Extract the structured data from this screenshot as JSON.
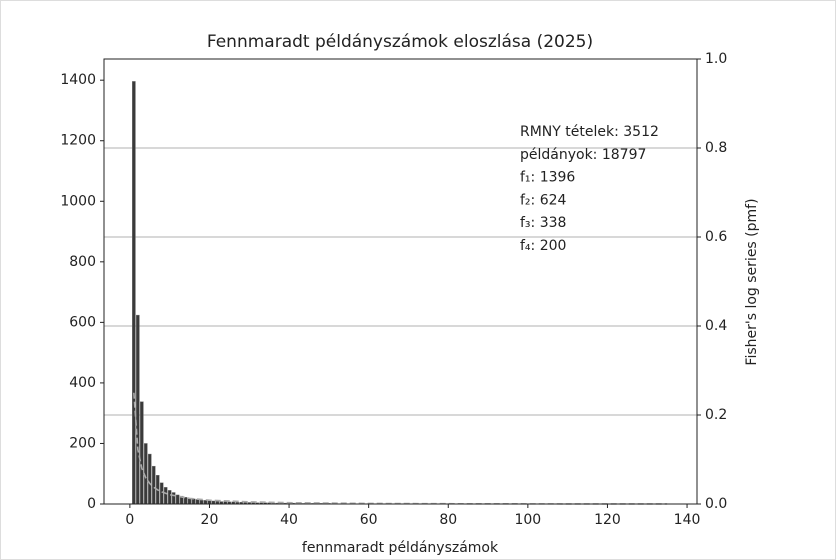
{
  "chart_data": {
    "type": "bar",
    "title": "Fennmaradt példányszámok eloszlása (2025)",
    "xlabel": "fennmaradt példányszámok",
    "y2label": "Fisher's log series (pmf)",
    "x": [
      1,
      2,
      3,
      4,
      5,
      6,
      7,
      8,
      9,
      10,
      11,
      12,
      13,
      14,
      15,
      16,
      17,
      18,
      19,
      20,
      21,
      22,
      23,
      24,
      25,
      26,
      27,
      28,
      29,
      30,
      31,
      32,
      33,
      34,
      35,
      36,
      37,
      38,
      39,
      40,
      41,
      42,
      43,
      44,
      45,
      46,
      47,
      48,
      49,
      50,
      51,
      52,
      53,
      54,
      55,
      56,
      57,
      58,
      59,
      60
    ],
    "values": [
      1396,
      624,
      338,
      200,
      165,
      125,
      95,
      70,
      55,
      45,
      38,
      30,
      26,
      22,
      19,
      17,
      15,
      13,
      12,
      11,
      10,
      9,
      8,
      8,
      7,
      7,
      6,
      6,
      5,
      5,
      5,
      4,
      4,
      4,
      4,
      3,
      3,
      3,
      3,
      3,
      3,
      2,
      2,
      2,
      2,
      2,
      2,
      2,
      2,
      2,
      1,
      1,
      1,
      1,
      1,
      1,
      1,
      1,
      1,
      1
    ],
    "color": "#3a3a3a",
    "line": {
      "x": [
        1,
        2,
        3,
        4,
        5,
        6,
        7,
        8,
        10,
        15,
        20,
        30,
        40,
        60,
        80,
        100,
        135
      ],
      "values": [
        0.25,
        0.1227,
        0.0802,
        0.0589,
        0.0461,
        0.0376,
        0.0316,
        0.0271,
        0.0209,
        0.0126,
        0.0085,
        0.0048,
        0.0029,
        0.0013,
        0.0006,
        0.0003,
        0.0001
      ],
      "axis": "y2",
      "color": "#aaaaaa",
      "dashed": true
    },
    "annotations": [
      "RMNY tételek: 3512",
      "példányok: 18797",
      "f₁: 1396",
      "f₂: 624",
      "f₃: 338",
      "f₄: 200"
    ],
    "xlim": [
      -6.5,
      142.5
    ],
    "xticks": [
      0,
      20,
      40,
      60,
      80,
      100,
      120,
      140
    ],
    "ylim": [
      0,
      1470
    ],
    "yticks": [
      0,
      200,
      400,
      600,
      800,
      1000,
      1200,
      1400
    ],
    "y2lim": [
      0,
      1
    ],
    "y2ticks": [
      {
        "value": 0,
        "label": "0.0"
      },
      0.2,
      0.4,
      0.6,
      0.8,
      {
        "value": 1,
        "label": "1.0"
      }
    ],
    "grid": "y2"
  }
}
